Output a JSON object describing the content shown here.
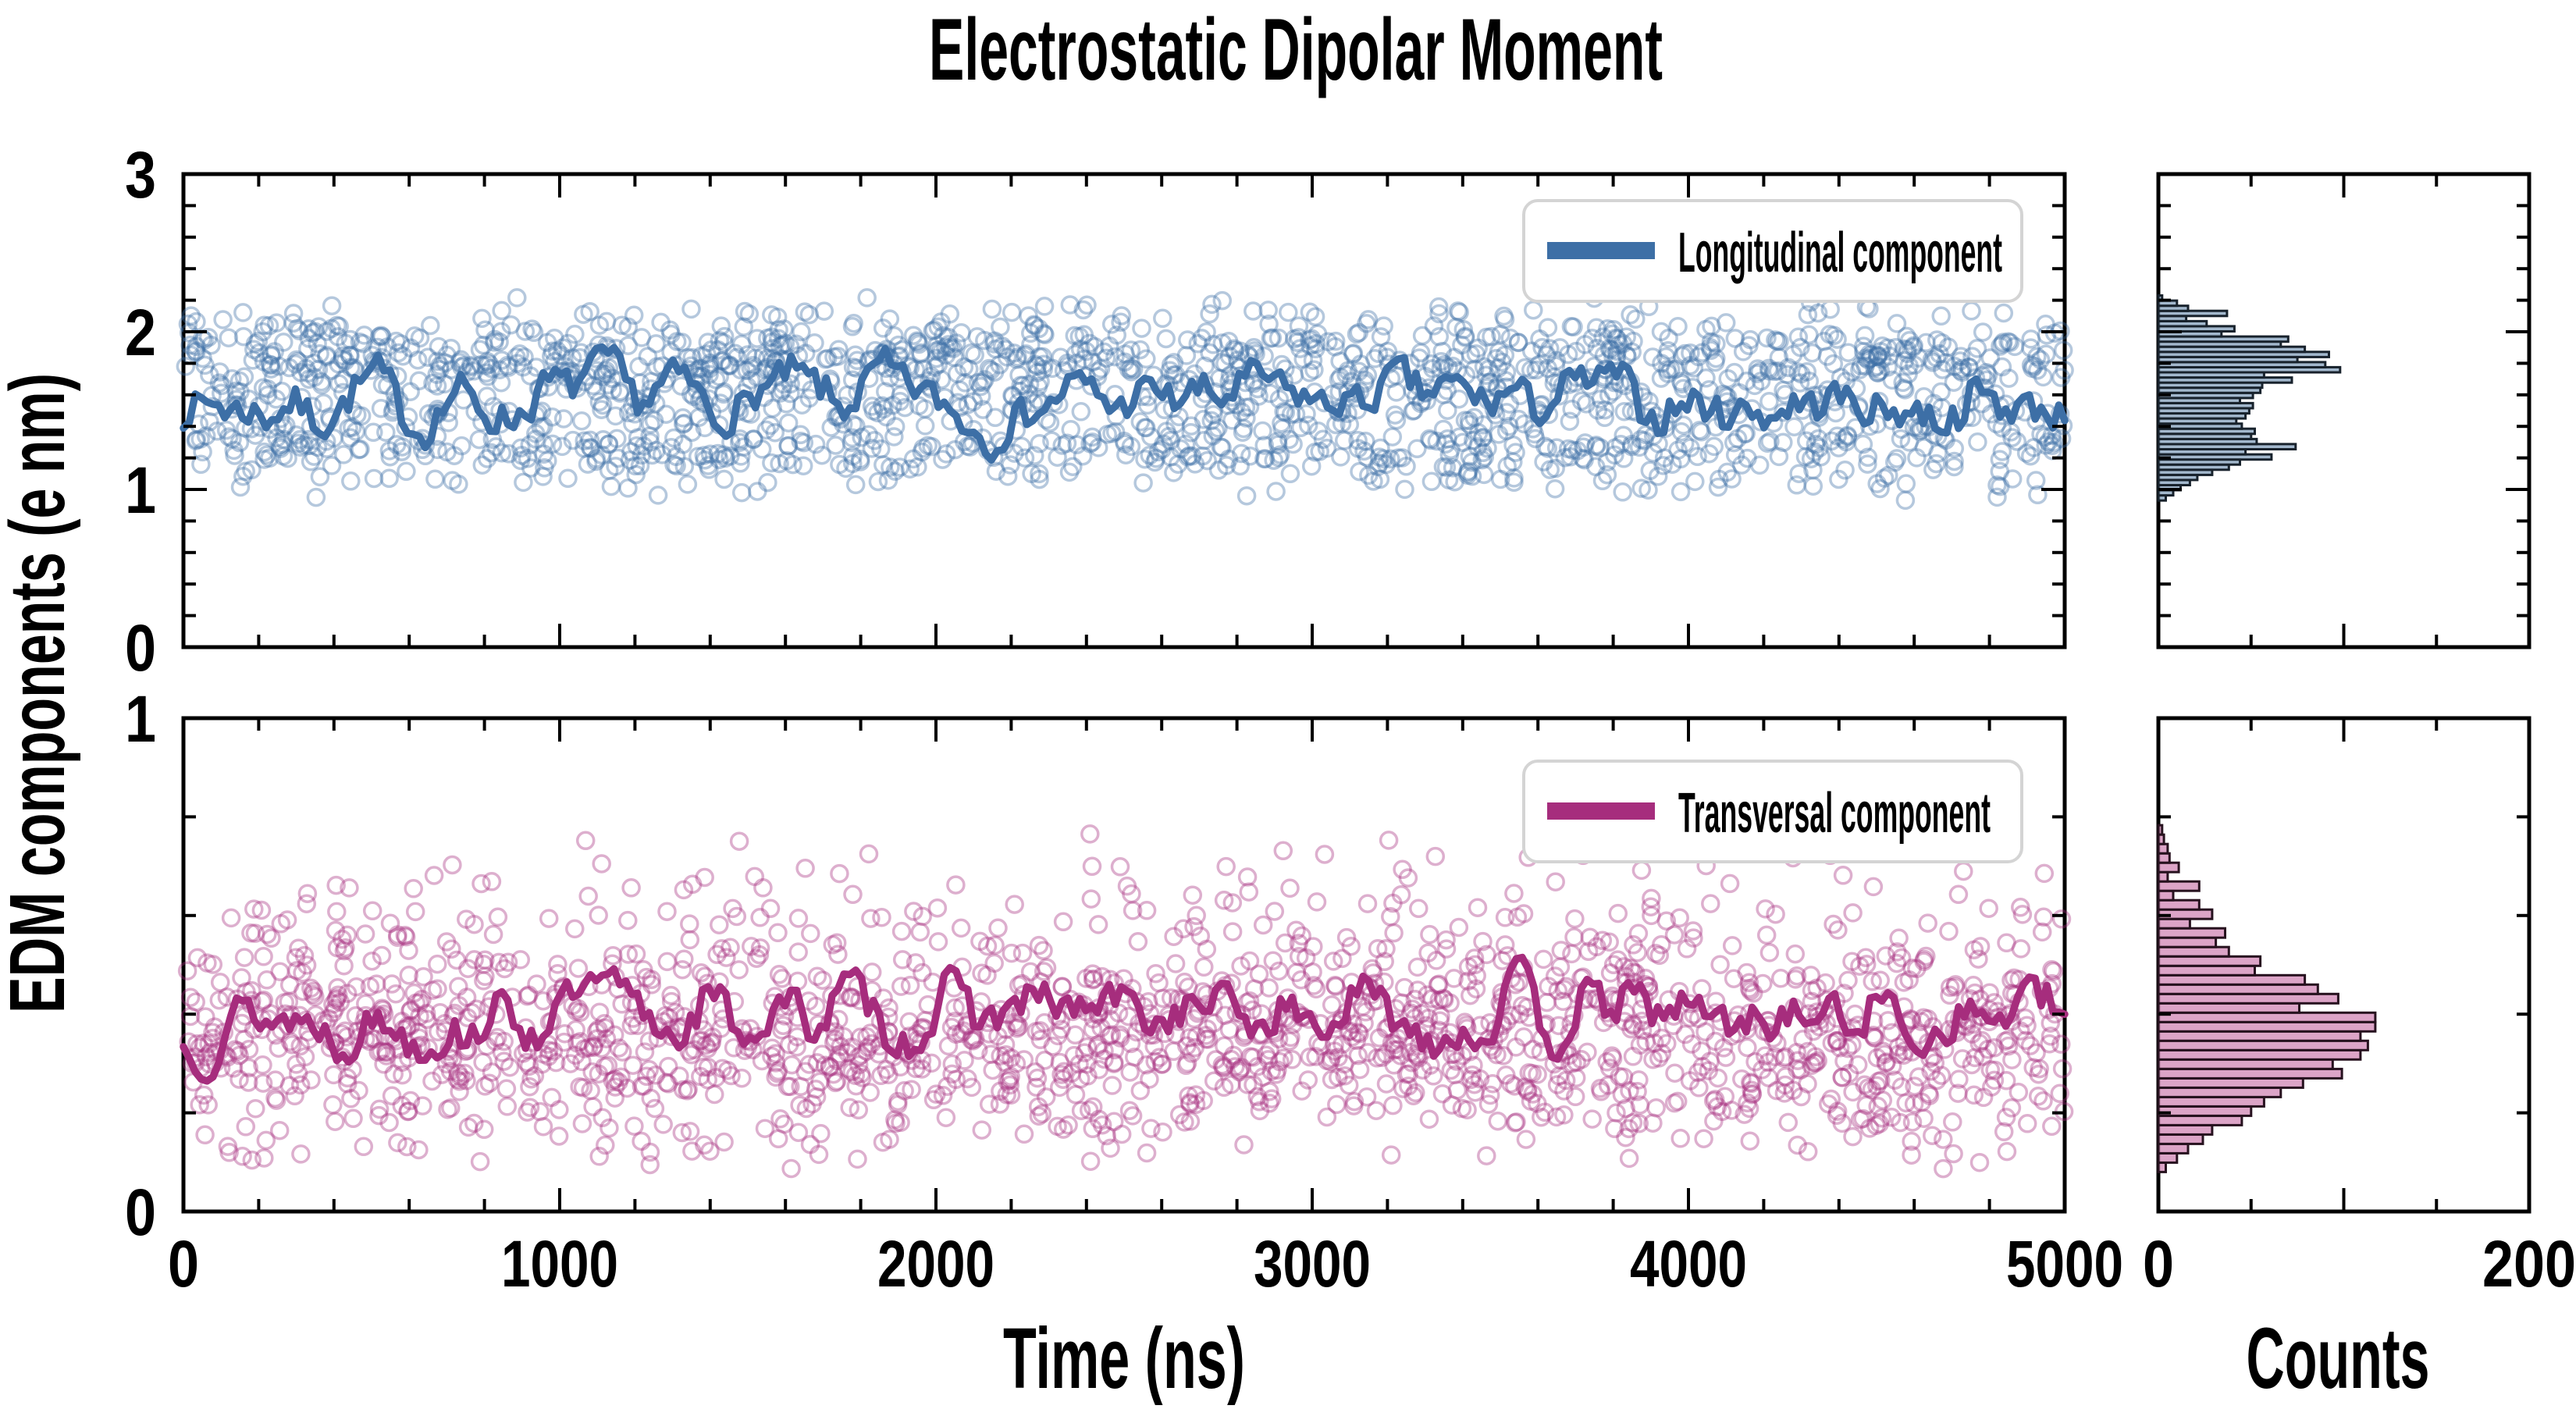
{
  "title": "Electrostatic Dipolar Moment",
  "axis_labels": {
    "x": "Time (ns)",
    "y": "EDM components (e nm)",
    "counts": "Counts"
  },
  "legends": {
    "top": "Longitudinal component",
    "bottom": "Transversal component"
  },
  "ticks": {
    "time": [
      "0",
      "1000",
      "2000",
      "3000",
      "4000",
      "5000"
    ],
    "y_top": [
      "0",
      "1",
      "2",
      "3"
    ],
    "y_bottom": [
      "0",
      "1"
    ],
    "counts": [
      "0",
      "200"
    ]
  },
  "colors": {
    "longitudinal": "#3d6fa6",
    "transversal": "#a62d7d",
    "hist_top_fill": "#93abc4",
    "hist_top_edge": "#18222c",
    "hist_bottom_fill": "#d694bd",
    "hist_bottom_edge": "#27121f",
    "legend_border": "#d4d4d4",
    "axis": "#000000"
  },
  "chart_data": [
    {
      "id": "longitudinal-timeseries",
      "type": "scatter",
      "legend": "Longitudinal component",
      "color": "#3d6fa6",
      "x_range": [
        0,
        5000
      ],
      "ylim": [
        0,
        3
      ],
      "xticks_major": [
        0,
        1000,
        2000,
        3000,
        4000,
        5000
      ],
      "xtick_minor_step": 200,
      "yticks_major": [
        0,
        1,
        2,
        3
      ],
      "ytick_minor_step": 0.2,
      "n_points": 1830,
      "scatter_marker": "open-circle",
      "scatter_y_distribution": {
        "bin_start": 0.93,
        "bin_width": 0.0325,
        "counts": [
          4,
          8,
          12,
          17,
          21,
          29,
          38,
          44,
          61,
          47,
          74,
          53,
          50,
          52,
          45,
          42,
          47,
          49,
          51,
          44,
          51,
          55,
          56,
          72,
          57,
          98,
          90,
          75,
          92,
          79,
          66,
          70,
          34,
          41,
          26,
          15,
          37,
          16,
          10,
          2
        ]
      },
      "rolling_mean_line": {
        "mean": 1.55,
        "slow_amp": 0.3,
        "fast_amp": 0.16,
        "min": 1.12,
        "max": 2.0,
        "n": 320,
        "seed": 7
      }
    },
    {
      "id": "longitudinal-histogram",
      "type": "bar",
      "orientation": "horizontal",
      "xlabel": "Counts",
      "xlim": [
        0,
        200
      ],
      "ylim": [
        0,
        3
      ],
      "xticks_major": [
        0,
        100,
        200
      ],
      "xticks_minor": [
        50,
        150
      ],
      "bin_start": 0.93,
      "bin_width": 0.0325,
      "counts": [
        4,
        8,
        12,
        17,
        21,
        29,
        38,
        44,
        61,
        47,
        74,
        53,
        50,
        52,
        45,
        42,
        47,
        49,
        51,
        44,
        51,
        55,
        56,
        72,
        57,
        98,
        90,
        75,
        92,
        79,
        66,
        70,
        34,
        41,
        26,
        15,
        37,
        16,
        10,
        2
      ]
    },
    {
      "id": "transversal-timeseries",
      "type": "scatter",
      "legend": "Transversal component",
      "color": "#a62d7d",
      "x_range": [
        0,
        5000
      ],
      "ylim": [
        0,
        1
      ],
      "xticks_major": [
        0,
        1000,
        2000,
        3000,
        4000,
        5000
      ],
      "xtick_minor_step": 200,
      "yticks_major": [
        0,
        1
      ],
      "ytick_minor_step": 0.2,
      "n_points": 1817,
      "scatter_marker": "open-circle",
      "scatter_y_distribution": {
        "bin_start": 0.08,
        "bin_width": 0.019,
        "counts": [
          4,
          10,
          16,
          24,
          29,
          45,
          50,
          57,
          66,
          78,
          99,
          94,
          109,
          113,
          109,
          117,
          117,
          76,
          97,
          86,
          79,
          52,
          55,
          38,
          31,
          36,
          17,
          29,
          22,
          8,
          22,
          5,
          11,
          6,
          5,
          3,
          2
        ]
      },
      "rolling_mean_line": {
        "mean": 0.4,
        "slow_amp": 0.11,
        "fast_amp": 0.055,
        "min": 0.24,
        "max": 0.56,
        "n": 320,
        "seed": 13
      }
    },
    {
      "id": "transversal-histogram",
      "type": "bar",
      "orientation": "horizontal",
      "xlabel": "Counts",
      "xlim": [
        0,
        200
      ],
      "ylim": [
        0,
        1
      ],
      "xticks_major": [
        0,
        100,
        200
      ],
      "xticks_minor": [
        50,
        150
      ],
      "bin_start": 0.08,
      "bin_width": 0.019,
      "counts": [
        4,
        10,
        16,
        24,
        29,
        45,
        50,
        57,
        66,
        78,
        99,
        94,
        109,
        113,
        109,
        117,
        117,
        76,
        97,
        86,
        79,
        52,
        55,
        38,
        31,
        36,
        17,
        29,
        22,
        8,
        22,
        5,
        11,
        6,
        5,
        3,
        2
      ]
    }
  ]
}
